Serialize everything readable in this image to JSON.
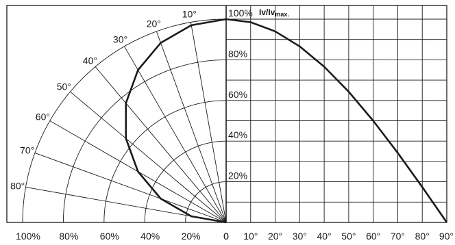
{
  "chart_data": [
    {
      "type": "polar",
      "half": "left",
      "radial_ticks": [
        "100%",
        "80%",
        "60%",
        "40%",
        "20%",
        "0"
      ],
      "radial_values": [
        100,
        80,
        60,
        40,
        20,
        0
      ],
      "angle_ticks": [
        10,
        20,
        30,
        40,
        50,
        60,
        70,
        80
      ],
      "angle_labels": [
        "10°",
        "20°",
        "30°",
        "40°",
        "50°",
        "60°",
        "70°",
        "80°"
      ],
      "series": [
        {
          "angle_deg": [
            0,
            10,
            20,
            30,
            40,
            50,
            60,
            70,
            80,
            90
          ],
          "value_pct": [
            100,
            98.5,
            94,
            86.6,
            76.6,
            64.3,
            50,
            34.2,
            17.4,
            0
          ]
        }
      ]
    },
    {
      "type": "line",
      "x": [
        0,
        10,
        20,
        30,
        40,
        50,
        60,
        70,
        80,
        90
      ],
      "y": [
        100,
        98.5,
        94,
        86.6,
        76.6,
        64.3,
        50,
        34.2,
        17.4,
        0
      ],
      "x_tick_labels": [
        "0",
        "10°",
        "20°",
        "30°",
        "40°",
        "50°",
        "60°",
        "70°",
        "80°",
        "90°"
      ],
      "y_tick_labels": [
        "20%",
        "40%",
        "60%",
        "80%",
        "100%"
      ],
      "y_tick_values": [
        20,
        40,
        60,
        80,
        100
      ],
      "xlim": [
        0,
        90
      ],
      "ylim": [
        0,
        100
      ],
      "ylabel_main": "Iv/Iv",
      "ylabel_sub": "max.",
      "grid": true
    }
  ]
}
